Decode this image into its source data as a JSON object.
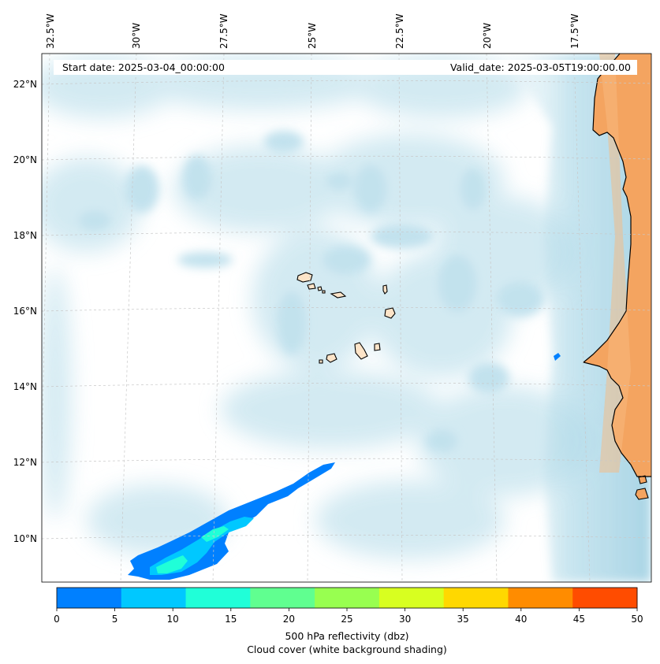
{
  "header": {
    "start_date": "Start date: 2025-03-04_00:00:00",
    "valid_date": "Valid_date: 2025-03-05T19:00:00.00"
  },
  "axes": {
    "lon_labels": [
      "32.5°W",
      "30°W",
      "27.5°W",
      "25°W",
      "22.5°W",
      "20°W",
      "17.5°W"
    ],
    "lat_labels": [
      "22°N",
      "20°N",
      "18°N",
      "16°N",
      "14°N",
      "12°N",
      "10°N"
    ]
  },
  "colorbar": {
    "ticks": [
      "0",
      "5",
      "10",
      "15",
      "20",
      "25",
      "30",
      "35",
      "40",
      "45",
      "50"
    ],
    "colors": [
      "#0080ff",
      "#00c8ff",
      "#20ffd8",
      "#60ff90",
      "#98ff50",
      "#d8ff20",
      "#ffd800",
      "#ff8c00",
      "#ff4c00"
    ],
    "label_line1": "500 hPa reflectivity (dbz)",
    "label_line2": "Cloud cover (white background shading)"
  },
  "colors": {
    "land": "#f4a460",
    "island": "#fde4c8",
    "cloud": "#b8dcea",
    "echo_light": "#0080ff",
    "echo_mid": "#00c8ff",
    "echo_high": "#20ffd8"
  }
}
